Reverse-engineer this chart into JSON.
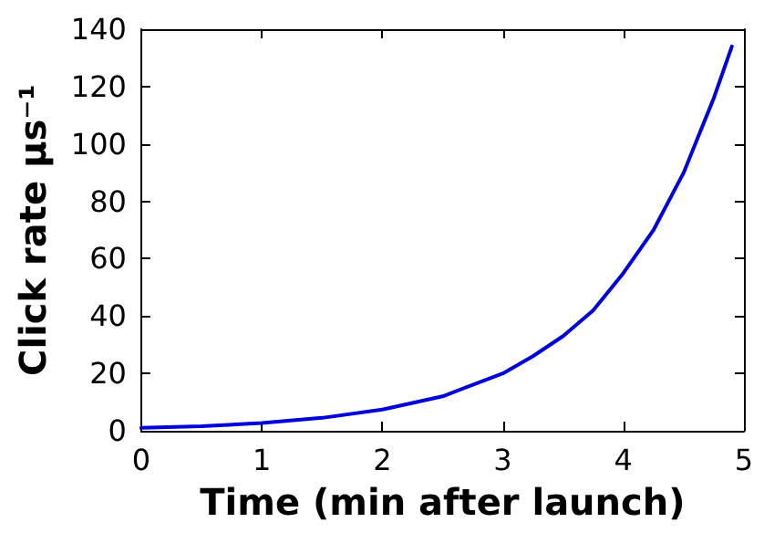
{
  "chart_data": {
    "type": "line",
    "xlabel": "Time (min after launch)",
    "ylabel": "Click rate μs⁻¹",
    "x": [
      0,
      0.5,
      1,
      1.5,
      2,
      2.5,
      3,
      3.25,
      3.5,
      3.75,
      4,
      4.25,
      4.5,
      4.75,
      4.9
    ],
    "series": [
      {
        "color": "#0000dd",
        "values": [
          1,
          1.6,
          2.7,
          4.5,
          7.4,
          12,
          20,
          26,
          33,
          42,
          55,
          70,
          90,
          116,
          134
        ]
      }
    ],
    "xlim": [
      0,
      5
    ],
    "xticks": [
      0,
      1,
      2,
      3,
      4,
      5
    ],
    "ylim": [
      0,
      140
    ],
    "yticks": [
      0,
      20,
      40,
      60,
      80,
      100,
      120,
      140
    ],
    "marker": "none",
    "line_style": "solid"
  }
}
